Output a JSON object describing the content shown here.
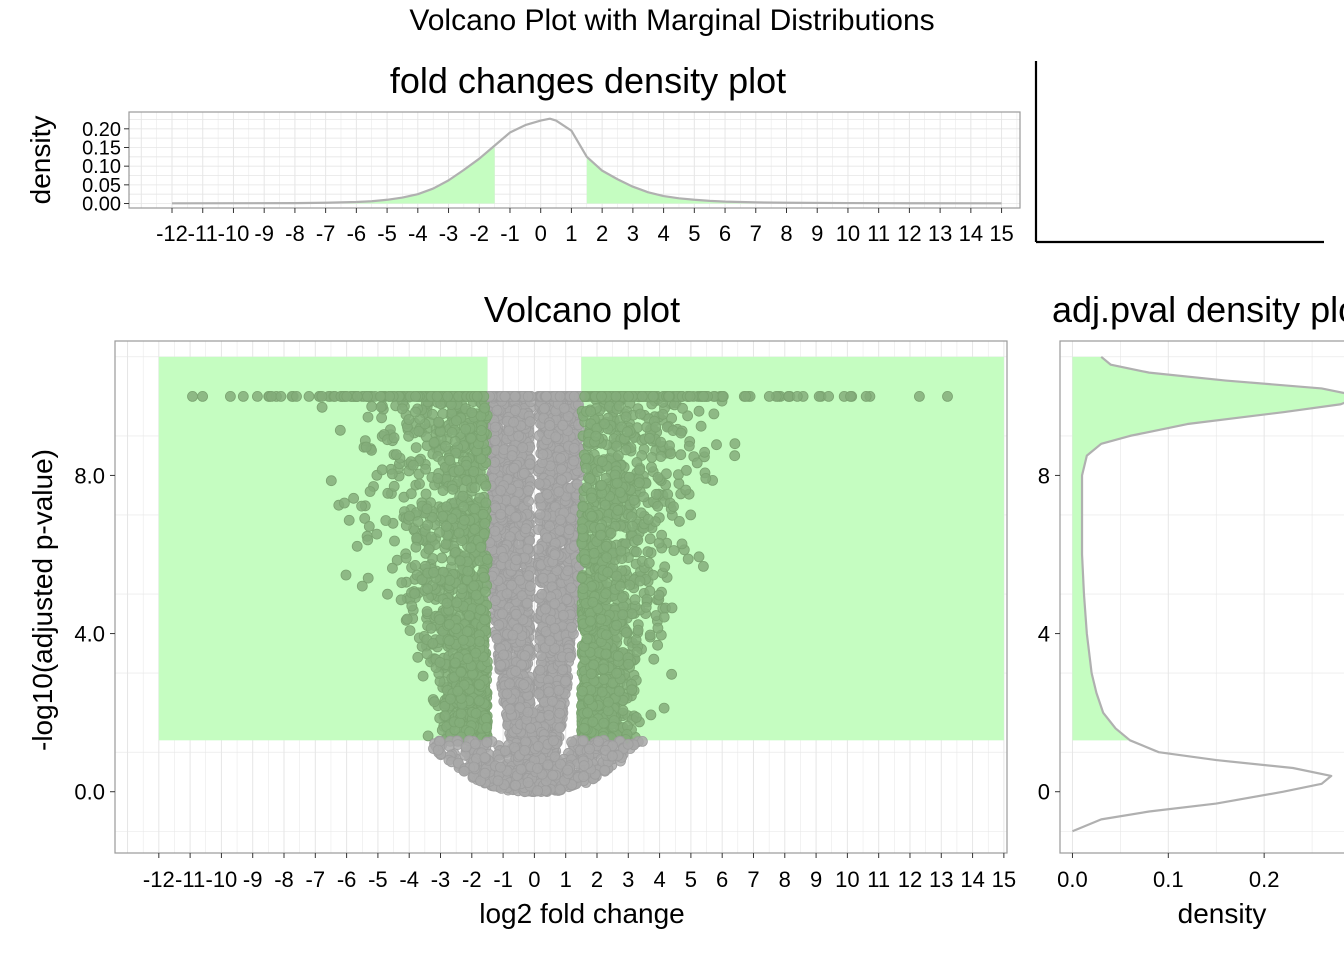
{
  "figure": {
    "title": "Volcano Plot with Marginal Distributions"
  },
  "colors": {
    "highlight": "#c5fdc1",
    "points_sig": "#84ad7a",
    "points_nonsig": "#a8a8a8",
    "density_line": "#b0b0b0",
    "grid": "#e6e6e6",
    "panel_border": "#9a9a9a"
  },
  "chart_data": [
    {
      "id": "fold-density",
      "type": "area",
      "title": "fold changes density plot",
      "xlabel": "",
      "ylabel": "density",
      "xlim": [
        -13.4,
        15.6
      ],
      "ylim": [
        -0.012,
        0.245
      ],
      "xticks": [
        -12,
        -11,
        -10,
        -9,
        -8,
        -7,
        -6,
        -5,
        -4,
        -3,
        -2,
        -1,
        0,
        1,
        2,
        3,
        4,
        5,
        6,
        7,
        8,
        9,
        10,
        11,
        12,
        13,
        14,
        15
      ],
      "xtick_labels": [
        "-12",
        "-11",
        "-10",
        "-9",
        "-8",
        "-7",
        "-6",
        "-5",
        "-4",
        "-3",
        "-2",
        "-1",
        "0",
        "1",
        "2",
        "3",
        "4",
        "5",
        "6",
        "7",
        "8",
        "9",
        "10",
        "11",
        "12",
        "13",
        "14",
        "15"
      ],
      "yticks": [
        0,
        0.05,
        0.1,
        0.15,
        0.2
      ],
      "ytick_labels": [
        "0.00",
        "0.05",
        "0.10",
        "0.15",
        "0.20"
      ],
      "highlight_ranges": [
        [
          -12,
          -1.5
        ],
        [
          1.5,
          15
        ]
      ],
      "x": [
        -12,
        -8,
        -7,
        -6,
        -5.5,
        -5,
        -4.5,
        -4,
        -3.5,
        -3,
        -2.5,
        -2,
        -1.5,
        -1,
        -0.5,
        0,
        0.3,
        0.5,
        1,
        1.5,
        2,
        2.5,
        3,
        3.5,
        4,
        4.5,
        5,
        5.5,
        6,
        7,
        8,
        10,
        12,
        15
      ],
      "y": [
        0.0005,
        0.001,
        0.002,
        0.004,
        0.006,
        0.01,
        0.016,
        0.025,
        0.04,
        0.062,
        0.09,
        0.12,
        0.155,
        0.19,
        0.21,
        0.222,
        0.227,
        0.222,
        0.195,
        0.125,
        0.088,
        0.065,
        0.045,
        0.03,
        0.02,
        0.014,
        0.01,
        0.007,
        0.005,
        0.003,
        0.002,
        0.0012,
        0.0008,
        0.0005
      ],
      "grid": true
    },
    {
      "id": "volcano",
      "type": "scatter",
      "title": "Volcano plot",
      "xlabel": "log2 fold change",
      "ylabel": "-log10(adjusted p-value)",
      "xlim": [
        -13.4,
        15.1
      ],
      "ylim": [
        -1.55,
        11.4
      ],
      "xticks": [
        -12,
        -11,
        -10,
        -9,
        -8,
        -7,
        -6,
        -5,
        -4,
        -3,
        -2,
        -1,
        0,
        1,
        2,
        3,
        4,
        5,
        6,
        7,
        8,
        9,
        10,
        11,
        12,
        13,
        14,
        15
      ],
      "xtick_labels": [
        "-12",
        "-11",
        "-10",
        "-9",
        "-8",
        "-7",
        "-6",
        "-5",
        "-4",
        "-3",
        "-2",
        "-1",
        "0",
        "1",
        "2",
        "3",
        "4",
        "5",
        "6",
        "7",
        "8",
        "9",
        "10",
        "11",
        "12",
        "13",
        "14",
        "15"
      ],
      "yticks": [
        0,
        4,
        8
      ],
      "ytick_labels": [
        "0.0",
        "4.0",
        "8.0"
      ],
      "highlight_rects": [
        {
          "x": [
            -12,
            -1.5
          ],
          "y": [
            1.3,
            11
          ]
        },
        {
          "x": [
            1.5,
            15
          ],
          "y": [
            1.3,
            11
          ]
        }
      ],
      "cap_value": 10,
      "fold_threshold": 1.5,
      "pval_threshold": 1.3,
      "outlier_points": [
        {
          "x": -10.6,
          "y": 10
        },
        {
          "x": -9.3,
          "y": 10
        },
        {
          "x": -8.4,
          "y": 10
        },
        {
          "x": -8.1,
          "y": 10
        },
        {
          "x": -7.6,
          "y": 10
        },
        {
          "x": -7.2,
          "y": 10
        },
        {
          "x": 8.4,
          "y": 10
        },
        {
          "x": 9.1,
          "y": 10
        },
        {
          "x": 9.4,
          "y": 10
        },
        {
          "x": 9.9,
          "y": 10
        },
        {
          "x": 10.1,
          "y": 10
        },
        {
          "x": 10.6,
          "y": 10
        },
        {
          "x": 12.3,
          "y": 10
        },
        {
          "x": 13.2,
          "y": 10
        },
        {
          "x": 6.4,
          "y": 8.5
        },
        {
          "x": -5.5,
          "y": 5.2
        },
        {
          "x": 5.4,
          "y": 5.7
        }
      ],
      "grid": true
    },
    {
      "id": "pval-density",
      "type": "area",
      "title": "adj.pval density plot",
      "xlabel": "density",
      "ylabel": "",
      "xlim": [
        -0.013,
        0.3
      ],
      "ylim": [
        -1.55,
        11.4
      ],
      "xticks": [
        0,
        0.1,
        0.2
      ],
      "xtick_labels": [
        "0.0",
        "0.1",
        "0.2"
      ],
      "yticks": [
        0,
        4,
        8
      ],
      "ytick_labels": [
        "0",
        "4",
        "8"
      ],
      "highlight_range": [
        1.3,
        11
      ],
      "y": [
        -1.0,
        -0.7,
        -0.5,
        -0.3,
        0,
        0.2,
        0.4,
        0.6,
        0.8,
        1.0,
        1.3,
        1.6,
        2.0,
        2.5,
        3.0,
        4.0,
        5.0,
        6.0,
        7.0,
        8.0,
        8.5,
        8.8,
        9.0,
        9.3,
        9.6,
        9.8,
        10.0,
        10.2,
        10.4,
        10.6,
        10.8,
        11.0
      ],
      "density": [
        0,
        0.03,
        0.08,
        0.15,
        0.22,
        0.26,
        0.27,
        0.23,
        0.15,
        0.09,
        0.06,
        0.045,
        0.032,
        0.025,
        0.02,
        0.015,
        0.012,
        0.01,
        0.01,
        0.01,
        0.015,
        0.03,
        0.06,
        0.12,
        0.22,
        0.28,
        0.3,
        0.26,
        0.16,
        0.08,
        0.04,
        0.03
      ],
      "grid": true
    }
  ]
}
